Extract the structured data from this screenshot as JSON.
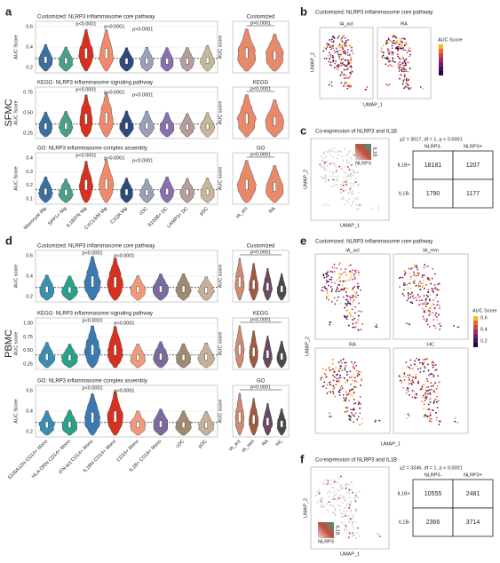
{
  "panels": {
    "a": {
      "label": "a",
      "section": "SFMC",
      "rows": [
        {
          "title": "Customized: NLRP3 inflammasome core pathway",
          "side_title": "Customized",
          "y_label": "AUC Score",
          "side_y_label": "AUC score",
          "yticks": [
            "0.6",
            "0.4",
            "0.2"
          ],
          "p_values": [
            "p<0.0001",
            "p<0.0001",
            "p<0.0001"
          ],
          "side_p": "p<0.0001"
        },
        {
          "title": "KEGG: NLRP3 inflammasome signaling pathway",
          "side_title": "KEGG",
          "y_label": "AUC Score",
          "side_y_label": "AUC score",
          "yticks": [
            "0.75",
            "0.50",
            "0.25"
          ],
          "p_values": [
            "p<0.0001",
            "p<0.0001",
            "p<0.0001"
          ],
          "side_p": "p<0.0001"
        },
        {
          "title": "GO: NLRP3 inflammasome complex assembly",
          "side_title": "GO",
          "y_label": "AUC Score",
          "side_y_label": "AUC score",
          "yticks": [
            "0.4",
            "0.3",
            "0.2",
            "0.1"
          ],
          "p_values": [
            "p<0.0001",
            "p<0.0001",
            "p<0.0001"
          ],
          "side_p": "p<0.0001"
        }
      ],
      "categories": [
        "Monocyte Mφ",
        "SPP1+ Mφ",
        "IL1B/FN Mφ",
        "CXCL9/M Mφ",
        "C1QA Mφ",
        "cDC",
        "S100B+ DC",
        "LAMP3+ DC",
        "pDC"
      ],
      "side_categories": [
        "IA_act",
        "RA"
      ],
      "colors": [
        "#3a6fa0",
        "#4aa08a",
        "#d7301f",
        "#f08a6a",
        "#2c4a7a",
        "#9aa0b8",
        "#8a6fb0",
        "#b89b9b",
        "#c8b89a"
      ],
      "side_colors": [
        "#e8896a",
        "#e8896a"
      ]
    },
    "b": {
      "label": "b",
      "title": "Customized: NLRP3 inflammasome core pathway",
      "plots": [
        "IA_act",
        "RA"
      ],
      "x_label": "UMAP_1",
      "y_label": "UMAP_2",
      "legend_title": "AUC Score"
    },
    "c": {
      "label": "c",
      "title": "Co-expression of NLRP3 and IL1B",
      "x_label": "UMAP_1",
      "y_label": "UMAP_2",
      "inset_x": "NLRP3",
      "inset_y": "IL1B",
      "stat": "χ2 = 3017, df = 1, p < 0.0001",
      "columns": [
        "NLRP3-",
        "NLRP3+"
      ],
      "row_labels": [
        "IL1B+",
        "IL1B-"
      ],
      "cells": [
        [
          "18181",
          "1207"
        ],
        [
          "1790",
          "1177"
        ]
      ]
    },
    "d": {
      "label": "d",
      "section": "PBMC",
      "rows": [
        {
          "title": "Customized: NLRP3 inflammasome core pathway",
          "side_title": "Customized",
          "y_label": "AUC score",
          "side_y_label": "AUC score",
          "yticks": [
            "0.6",
            "0.4",
            "0.2"
          ],
          "p_values": [
            "p<0.0001",
            "p<0.0001"
          ],
          "side_p": "p<0.0001"
        },
        {
          "title": "KEGG: NLRP3 inflammasome signaling pathway",
          "side_title": "KEGG",
          "y_label": "AUC score",
          "side_y_label": "AUC score",
          "yticks": [
            "1.00",
            "0.75",
            "0.50",
            "0.25"
          ],
          "p_values": [
            "p<0.0001",
            "p<0.0001"
          ],
          "side_p": "p<0.0001"
        },
        {
          "title": "GO: NLRP3 inflammasome complex assembly",
          "side_title": "GO",
          "y_label": "AUC Score",
          "side_y_label": "AUC score",
          "yticks": [
            "0.6",
            "0.4",
            "0.2"
          ],
          "p_values": [
            "p<0.0001",
            "p<0.0001"
          ],
          "side_p": "p<0.0001"
        }
      ],
      "categories": [
        "S100A12hi CD14+ Mono",
        "HLA-DRhi CD14+ Mono",
        "IFN-act CD14+ Mono",
        "IL1Bhi CD14+ Mono",
        "CD16+ Mono",
        "IL1B+ CD16+ Mono",
        "cDC",
        "pDC"
      ],
      "side_categories": [
        "IA_act",
        "IA_rem",
        "RA",
        "HC"
      ],
      "colors": [
        "#3a8fb0",
        "#2aa08a",
        "#3a7ab0",
        "#d7301f",
        "#f09a7a",
        "#7a6aa0",
        "#a08a70",
        "#c8b098"
      ],
      "side_colors": [
        "#d08a70",
        "#a05a40",
        "#6a4a60",
        "#4a4a4a"
      ]
    },
    "e": {
      "label": "e",
      "title": "Customized: NLRP3 inflammasome core pathway",
      "plots": [
        "IA_act",
        "IA_rem",
        "RA",
        "HC"
      ],
      "x_label": "UMAP_1",
      "y_label": "UMAP_2",
      "legend_title": "AUC Score",
      "legend_ticks": [
        "0.6",
        "0.4",
        "0.2"
      ]
    },
    "f": {
      "label": "f",
      "title": "Co-expression of NLRP3 and IL1B",
      "x_label": "UMAP_1",
      "y_label": "UMAP_2",
      "inset_x": "NLRP3",
      "inset_y": "IL1B",
      "stat": "χ2 = 3346, df = 1, p < 0.0001",
      "columns": [
        "NLRP3-",
        "NLRP3+"
      ],
      "row_labels": [
        "IL1B+",
        "IL1B-"
      ],
      "cells": [
        [
          "10555",
          "2481"
        ],
        [
          "2366",
          "3714"
        ]
      ]
    }
  }
}
